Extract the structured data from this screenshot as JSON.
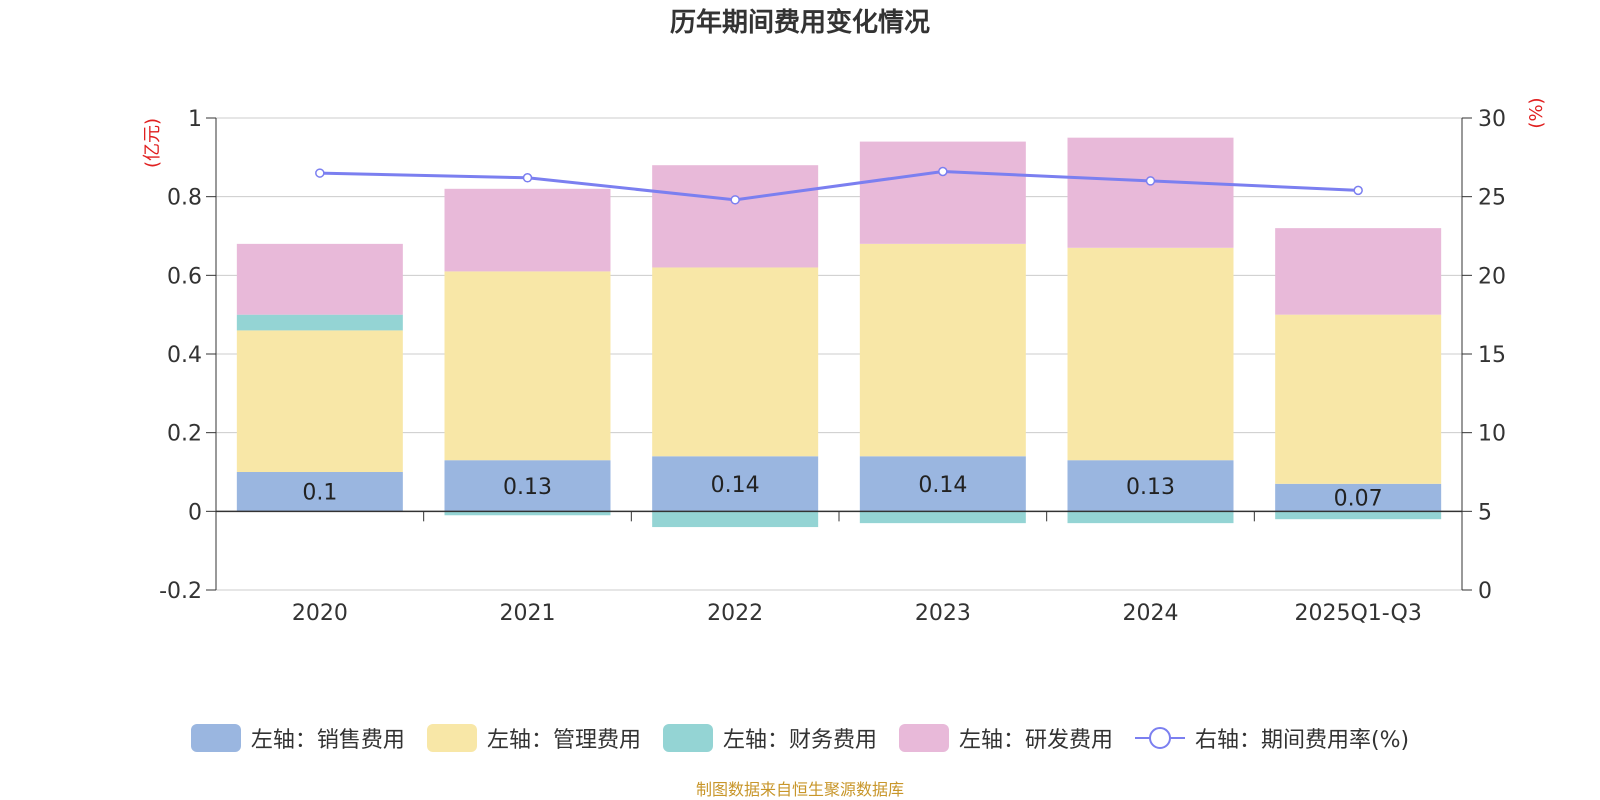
{
  "chart_data": {
    "type": "bar",
    "title": "历年期间费用变化情况",
    "categories": [
      "2020",
      "2021",
      "2022",
      "2023",
      "2024",
      "2025Q1-Q3"
    ],
    "series": [
      {
        "name": "左轴：销售费用",
        "axis": "left",
        "color": "#9ab6e0",
        "values": [
          0.1,
          0.13,
          0.14,
          0.14,
          0.13,
          0.07
        ],
        "labels": [
          "0.1",
          "0.13",
          "0.14",
          "0.14",
          "0.13",
          "0.07"
        ]
      },
      {
        "name": "左轴：管理费用",
        "axis": "left",
        "color": "#f8e7a7",
        "values": [
          0.36,
          0.48,
          0.48,
          0.54,
          0.54,
          0.43
        ]
      },
      {
        "name": "左轴：财务费用",
        "axis": "left",
        "color": "#94d4d4",
        "values": [
          0.04,
          -0.01,
          -0.04,
          -0.03,
          -0.03,
          -0.02
        ]
      },
      {
        "name": "左轴：研发费用",
        "axis": "left",
        "color": "#e8b9d9",
        "values": [
          0.18,
          0.21,
          0.26,
          0.26,
          0.28,
          0.22
        ]
      }
    ],
    "line": {
      "name": "右轴：期间费用率(%)",
      "axis": "right",
      "color": "#7b7ff0",
      "values": [
        26.5,
        26.2,
        24.8,
        26.6,
        26.0,
        25.4
      ]
    },
    "left_axis": {
      "label": "(亿元)",
      "min": -0.2,
      "max": 1,
      "ticks": [
        "-0.2",
        "0",
        "0.2",
        "0.4",
        "0.6",
        "0.8",
        "1"
      ]
    },
    "right_axis": {
      "label": "(%)",
      "min": 0,
      "max": 30,
      "ticks": [
        "0",
        "5",
        "10",
        "15",
        "20",
        "25",
        "30"
      ]
    },
    "legend_position": "bottom",
    "grid": true
  },
  "source": "制图数据来自恒生聚源数据库"
}
